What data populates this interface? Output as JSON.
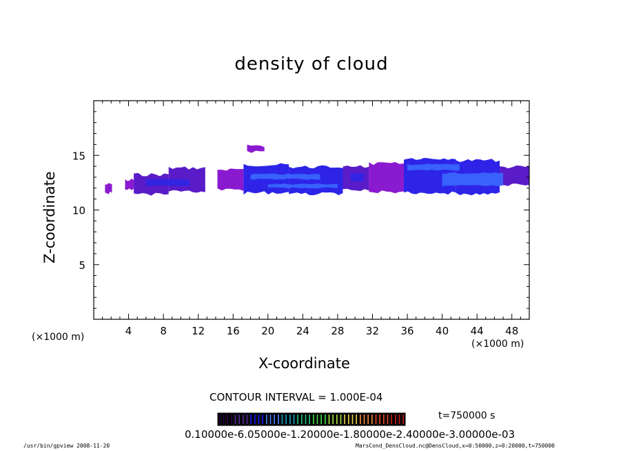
{
  "chart_data": {
    "type": "heatmap",
    "title": "density of cloud",
    "xlabel": "X-coordinate",
    "ylabel": "Z-coordinate",
    "x_unit_label": "(×1000 m)",
    "xlim": [
      0,
      50
    ],
    "ylim": [
      0,
      20
    ],
    "x_ticks": [
      "4",
      "8",
      "12",
      "16",
      "20",
      "24",
      "28",
      "32",
      "36",
      "40",
      "44",
      "48"
    ],
    "y_ticks": [
      "5",
      "10",
      "15"
    ],
    "contour_interval_text": "CONTOUR INTERVAL = 1.000E-04",
    "time_text": "t=750000 s",
    "colorbar_labels_text": "0.10000e-6.05000e-1.20000e-1.80000e-2.40000e-3.00000e-03",
    "colorbar_colors": [
      "#2a003f",
      "#5a2d9a",
      "#1a1aff",
      "#4d7dff",
      "#1aa0c8",
      "#22c080",
      "#44d84a",
      "#a8e040",
      "#e8d048",
      "#f08a40",
      "#e84a2a",
      "#c81a1a"
    ],
    "cloud_colors": {
      "low": "#8a1ad0",
      "mid": "#5a1cc8",
      "high": "#2d24e8",
      "peak": "#3c6cff"
    },
    "cloud_blobs": [
      {
        "x": [
          1.3,
          2.1
        ],
        "z": [
          11.5,
          12.4
        ],
        "level": "low"
      },
      {
        "x": [
          3.6,
          4.6
        ],
        "z": [
          11.8,
          12.8
        ],
        "level": "low"
      },
      {
        "x": [
          4.6,
          8.6
        ],
        "z": [
          11.4,
          13.3
        ],
        "level": "mid"
      },
      {
        "x": [
          8.6,
          12.8
        ],
        "z": [
          11.6,
          13.9
        ],
        "level": "mid"
      },
      {
        "x": [
          14.2,
          17.2
        ],
        "z": [
          11.8,
          13.8
        ],
        "level": "low"
      },
      {
        "x": [
          17.2,
          22.4
        ],
        "z": [
          11.5,
          14.2
        ],
        "level": "high"
      },
      {
        "x": [
          22.4,
          28.6
        ],
        "z": [
          11.4,
          14.0
        ],
        "level": "high"
      },
      {
        "x": [
          17.6,
          19.6
        ],
        "z": [
          15.2,
          15.9
        ],
        "level": "low"
      },
      {
        "x": [
          28.6,
          31.6
        ],
        "z": [
          11.8,
          14.0
        ],
        "level": "mid"
      },
      {
        "x": [
          31.6,
          35.6
        ],
        "z": [
          11.6,
          14.3
        ],
        "level": "low"
      },
      {
        "x": [
          35.6,
          41.6
        ],
        "z": [
          11.5,
          14.8
        ],
        "level": "high"
      },
      {
        "x": [
          41.6,
          46.6
        ],
        "z": [
          11.4,
          14.6
        ],
        "level": "high"
      },
      {
        "x": [
          46.6,
          50.0
        ],
        "z": [
          12.2,
          14.0
        ],
        "level": "mid"
      }
    ],
    "cloud_streaks": [
      {
        "x": [
          18.0,
          26.0
        ],
        "z": [
          12.8,
          13.3
        ],
        "level": "peak"
      },
      {
        "x": [
          20.0,
          28.0
        ],
        "z": [
          12.0,
          12.4
        ],
        "level": "peak"
      },
      {
        "x": [
          36.0,
          42.0
        ],
        "z": [
          13.6,
          14.2
        ],
        "level": "peak"
      },
      {
        "x": [
          40.0,
          47.0
        ],
        "z": [
          12.2,
          13.4
        ],
        "level": "peak"
      },
      {
        "x": [
          6.0,
          11.0
        ],
        "z": [
          12.2,
          12.8
        ],
        "level": "high"
      },
      {
        "x": [
          29.5,
          31.0
        ],
        "z": [
          12.6,
          13.4
        ],
        "level": "high"
      }
    ]
  },
  "footer": {
    "left": "/usr/bin/gpview   2008-11-20",
    "right": "MarsCond_DensCloud.nc@DensCloud,x=0:50000,z=0:20000,t=750000"
  }
}
